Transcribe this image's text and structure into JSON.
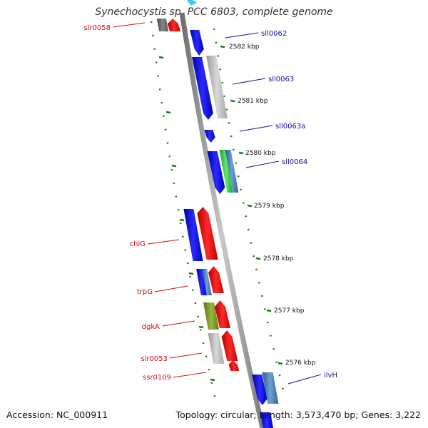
{
  "title": "Synechocystis sp. PCC 6803, complete genome",
  "footer": {
    "accession": "Accession: NC_000911",
    "topology": "Topology: circular; Length: 3,573,470 bp; Genes: 3,222"
  },
  "colors": {
    "backbone": "#8a8a8a",
    "forward_label": "#1010a0",
    "reverse_label": "#cc1010",
    "tick": "#1a7a1a",
    "blue": "#1010e0",
    "red": "#ee1010",
    "grey": "#c4c4c4",
    "steelblue": "#4a7fb0",
    "green": "#2ecc40",
    "olive": "#7a9a20"
  },
  "kbp_marks": [
    "2582 kbp",
    "2581 kbp",
    "2580 kbp",
    "2579 kbp",
    "2578 kbp",
    "2577 kbp",
    "2576 kbp"
  ],
  "gene_labels": {
    "slr0058": "slr0058",
    "sll0062": "sll0062",
    "sll0063": "sll0063",
    "sll0063a": "sll0063a",
    "sll0064": "sll0064",
    "chlG": "chlG",
    "trpG": "trpG",
    "dgkA": "dgkA",
    "slr0053": "slr0053",
    "ssr0109": "ssr0109",
    "ilvH": "ilvH"
  }
}
